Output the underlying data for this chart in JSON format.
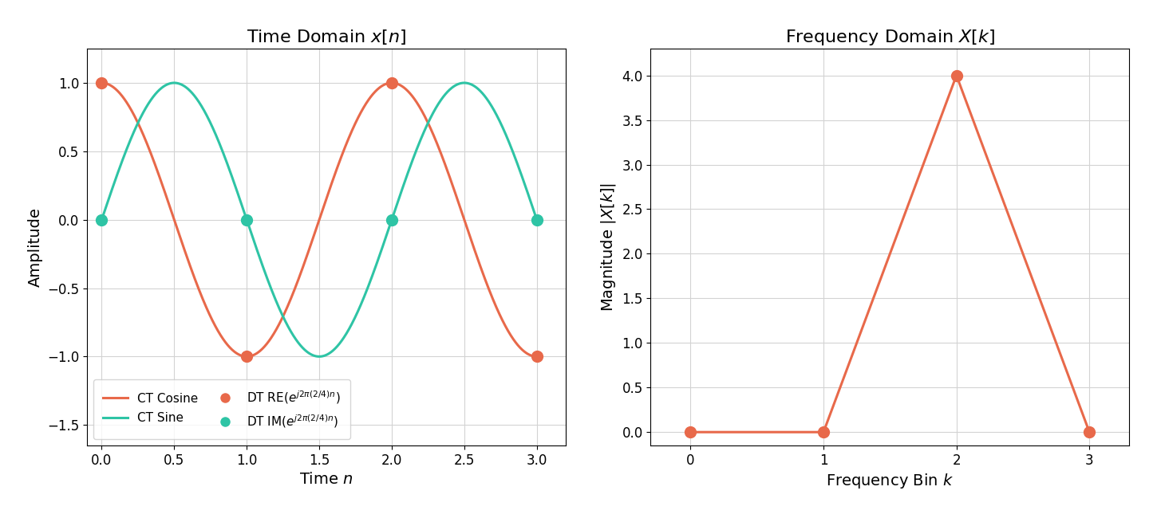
{
  "left_title": "Time Domain $x[n]$",
  "right_title": "Frequency Domain $X[k]$",
  "cos_color": "#E8694A",
  "sin_color": "#2EC4A5",
  "freq_color": "#E8694A",
  "left_xlabel": "Time $n$",
  "left_ylabel": "Amplitude",
  "right_xlabel": "Frequency Bin $k$",
  "right_ylabel": "Magnitude $|X[k]|$",
  "N": 4,
  "k_signal": 2,
  "freq_k": [
    0,
    1,
    2,
    3
  ],
  "freq_mag": [
    0.0,
    0.0,
    4.0,
    0.0
  ],
  "left_xlim": [
    -0.1,
    3.2
  ],
  "left_ylim": [
    -1.65,
    1.25
  ],
  "right_xlim": [
    -0.3,
    3.3
  ],
  "right_ylim": [
    -0.15,
    4.3
  ],
  "left_xticks": [
    0.0,
    0.5,
    1.0,
    1.5,
    2.0,
    2.5,
    3.0
  ],
  "right_xticks": [
    0,
    1,
    2,
    3
  ],
  "legend_line_labels": [
    "CT Cosine",
    "CT Sine"
  ],
  "legend_dot_labels": [
    "DT RE($e^{j2\\pi(2/4)n}$)",
    "DT IM($e^{j2\\pi(2/4)n}$)"
  ],
  "marker_size": 10,
  "line_width": 2.2,
  "title_fontsize": 16,
  "label_fontsize": 14,
  "tick_fontsize": 12,
  "legend_fontsize": 11,
  "bg_color": "#f0f0f0"
}
